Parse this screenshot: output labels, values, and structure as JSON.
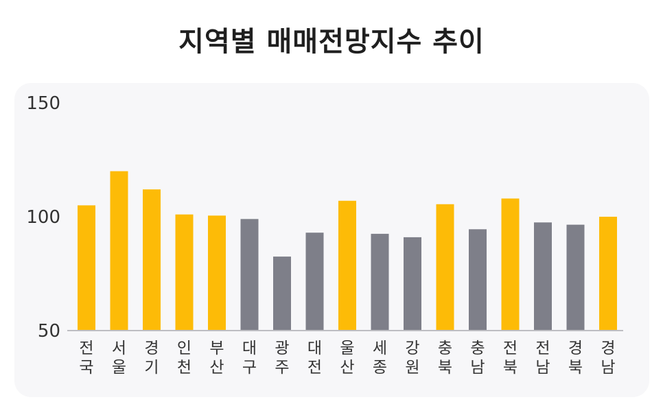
{
  "chart_data": {
    "type": "bar",
    "title": "지역별 매매전망지수 추이",
    "xlabel": "",
    "ylabel": "",
    "ylim": [
      50,
      150
    ],
    "yticks": [
      50,
      100,
      150
    ],
    "grid": false,
    "colors": {
      "highlight": "#FDBB07",
      "normal": "#7E7F89"
    },
    "categories": [
      "전국",
      "서울",
      "경기",
      "인천",
      "부산",
      "대구",
      "광주",
      "대전",
      "울산",
      "세종",
      "강원",
      "충북",
      "충남",
      "전북",
      "전남",
      "경북",
      "경남"
    ],
    "values": [
      105,
      120,
      112,
      101,
      100.5,
      99,
      82.5,
      93,
      107,
      92.5,
      91,
      105.5,
      94.5,
      108,
      97.5,
      96.5,
      100
    ],
    "highlighted": [
      true,
      true,
      true,
      true,
      true,
      false,
      false,
      false,
      true,
      false,
      false,
      true,
      false,
      true,
      false,
      false,
      true
    ]
  }
}
